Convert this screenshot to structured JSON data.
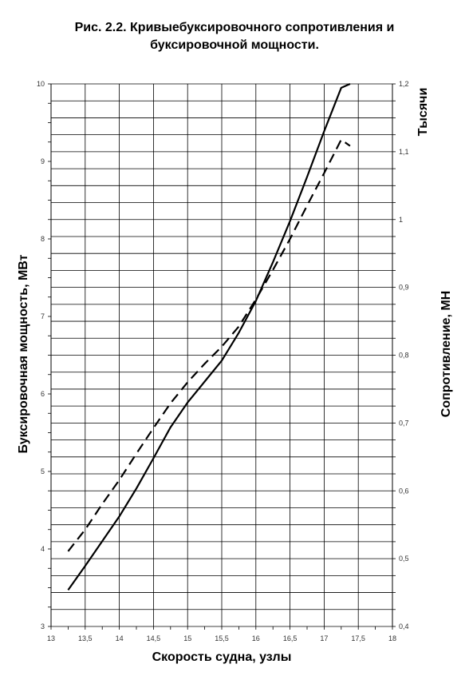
{
  "chart_data": {
    "type": "line",
    "title_line1": "Рис. 2.2. Кривыебуксировочного сопротивления и",
    "title_line2": "буксировочной мощности.",
    "xlabel": "Скорость судна, узлы",
    "ylabel_left": "Буксировочная мощность,  МВт",
    "ylabel_right": "Сопротивление, МН",
    "right_axis_multiplier": "Тысячи",
    "xlim": [
      13,
      18
    ],
    "ylim_left": [
      3,
      10
    ],
    "ylim_right": [
      0.4,
      1.2
    ],
    "x_ticks": [
      "13",
      "13,5",
      "14",
      "14,5",
      "15",
      "15,5",
      "16",
      "16,5",
      "17",
      "17,5",
      "18"
    ],
    "y_left_ticks": [
      "3",
      "4",
      "5",
      "6",
      "7",
      "8",
      "9",
      "10"
    ],
    "y_right_ticks": [
      "0,4",
      "0,5",
      "0,6",
      "0,7",
      "0,8",
      "0,9",
      "1",
      "1,1",
      "1,2"
    ],
    "grid": true,
    "series": [
      {
        "style": "solid",
        "axis": "left",
        "x": [
          13.25,
          13.5,
          13.75,
          14.0,
          14.25,
          14.5,
          14.75,
          15.0,
          15.25,
          15.5,
          15.75,
          16.0,
          16.25,
          16.5,
          16.75,
          17.0,
          17.25,
          17.38
        ],
        "y": [
          3.47,
          3.78,
          4.1,
          4.42,
          4.78,
          5.17,
          5.57,
          5.89,
          6.16,
          6.43,
          6.79,
          7.2,
          7.7,
          8.23,
          8.8,
          9.39,
          9.95,
          10.0
        ]
      },
      {
        "style": "dashed",
        "axis": "left",
        "x": [
          13.25,
          13.5,
          13.75,
          14.0,
          14.25,
          14.5,
          14.75,
          15.0,
          15.25,
          15.5,
          15.75,
          16.0,
          16.25,
          16.5,
          16.75,
          17.0,
          17.25,
          17.38
        ],
        "y": [
          3.97,
          4.25,
          4.58,
          4.89,
          5.23,
          5.56,
          5.88,
          6.15,
          6.39,
          6.61,
          6.87,
          7.22,
          7.6,
          8.0,
          8.43,
          8.85,
          9.28,
          9.2
        ]
      }
    ]
  }
}
